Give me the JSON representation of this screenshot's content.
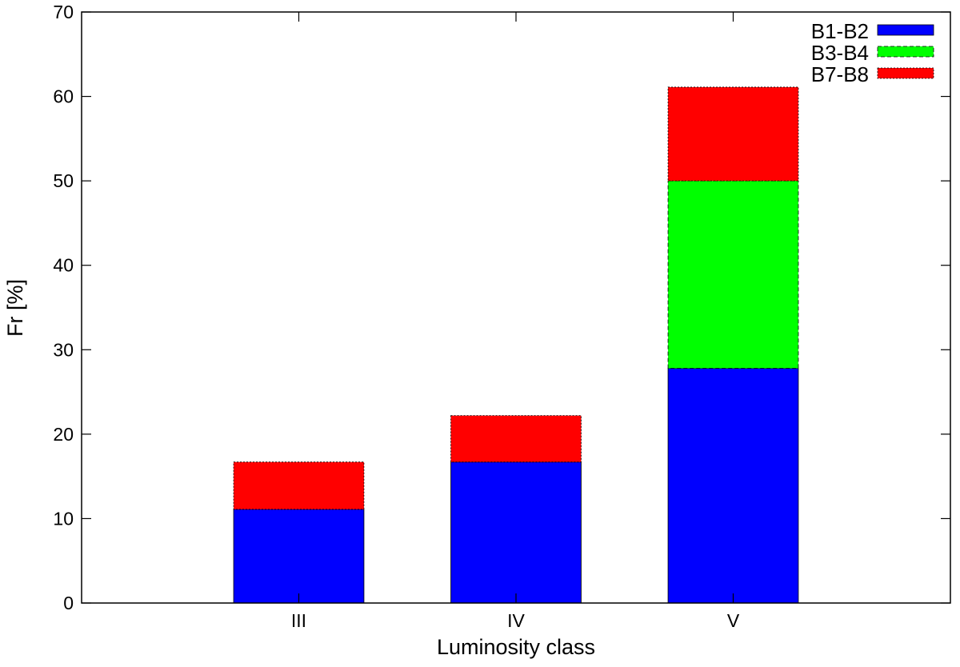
{
  "chart_data": {
    "type": "bar",
    "stacked": true,
    "title": "",
    "xlabel": "Luminosity class",
    "ylabel": "Fr [%]",
    "ylim": [
      0,
      70
    ],
    "yticks": [
      0,
      10,
      20,
      30,
      40,
      50,
      60,
      70
    ],
    "categories": [
      "III",
      "IV",
      "V"
    ],
    "grid": false,
    "legend": {
      "placement": "top-right"
    },
    "series": [
      {
        "name": "B1-B2",
        "color": "#0000ff",
        "border": "solid",
        "values": [
          11.1,
          16.7,
          27.8
        ]
      },
      {
        "name": "B3-B4",
        "color": "#00ff00",
        "border": "dashed",
        "values": [
          0,
          0,
          22.2
        ]
      },
      {
        "name": "B7-B8",
        "color": "#ff0000",
        "border": "dotted",
        "values": [
          5.6,
          5.5,
          11.1
        ]
      }
    ]
  }
}
